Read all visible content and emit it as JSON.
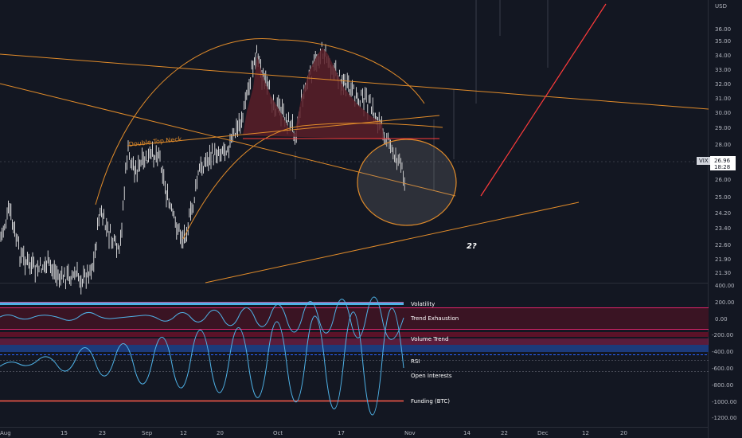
{
  "chart": {
    "currency": "USD",
    "last_price": "26.96",
    "countdown": "18:28",
    "symbol_tag": "VIX",
    "price_ticks": [
      "36.00",
      "35.00",
      "34.00",
      "33.00",
      "32.00",
      "31.00",
      "30.00",
      "29.00",
      "28.00",
      "26.00",
      "25.00",
      "24.20",
      "23.40",
      "22.60",
      "21.90",
      "21.30"
    ],
    "indicator_ticks": [
      "400.00",
      "200.00",
      "0.00",
      "-200.00",
      "-400.00",
      "-600.00",
      "-800.00",
      "-1000.00",
      "-1200.00"
    ],
    "time_ticks": [
      "Aug",
      "15",
      "23",
      "Sep",
      "12",
      "20",
      "Oct",
      "17",
      "Nov",
      "14",
      "22",
      "Dec",
      "12",
      "20"
    ],
    "annotations": {
      "neck_label": "Double Top Neck",
      "question": "2?"
    },
    "indicators": {
      "volatility": "Volatility",
      "trend_exhaustion": "Trend Exhaustion",
      "volume_trend": "Volume Trend",
      "rsi": "RSI",
      "open_interests": "Open Interests",
      "funding": "Funding (BTC)"
    },
    "colors": {
      "background": "#131722",
      "trendline": "#e08b2a",
      "red_line": "#ff3b3b",
      "candle": "#ffffff",
      "price_tag": "#ffffff",
      "volatility_bar": "#4fb3e8",
      "trend_band": "#e0246a",
      "volume_band": "#2962ff",
      "rsi_line": "#4fb3e8",
      "funding_line": "#ff5a4a"
    }
  }
}
